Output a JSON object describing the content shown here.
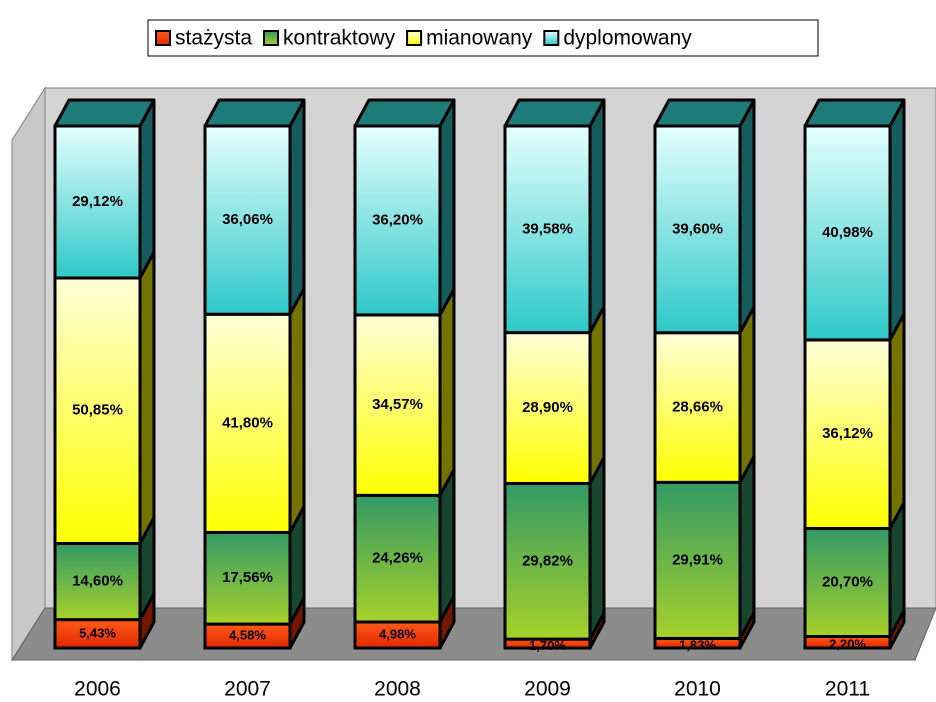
{
  "chart_data": {
    "type": "bar3d_stacked",
    "categories": [
      "2006",
      "2007",
      "2008",
      "2009",
      "2010",
      "2011"
    ],
    "ylim": [
      0,
      100
    ],
    "series": [
      {
        "name": "stażysta",
        "color": "#ff3300",
        "values": [
          5.43,
          4.58,
          4.98,
          1.7,
          1.83,
          2.2
        ],
        "value_labels": [
          "5,43%",
          "4,58%",
          "4,98%",
          "1,70%",
          "1,83%",
          "2,20%"
        ]
      },
      {
        "name": "kontraktowy",
        "color": "#339966",
        "values": [
          14.6,
          17.56,
          24.26,
          29.82,
          29.91,
          20.7
        ],
        "value_labels": [
          "14,60%",
          "17,56%",
          "24,26%",
          "29,82%",
          "29,91%",
          "20,70%"
        ]
      },
      {
        "name": "mianowany",
        "color": "#ffff00",
        "values": [
          50.85,
          41.8,
          34.57,
          28.9,
          28.66,
          36.12
        ],
        "value_labels": [
          "50,85%",
          "41,80%",
          "34,57%",
          "28,90%",
          "28,66%",
          "36,12%"
        ]
      },
      {
        "name": "dyplomowany",
        "color": "#33cccc",
        "values": [
          29.12,
          36.06,
          36.2,
          39.58,
          39.6,
          40.98
        ],
        "value_labels": [
          "29,12%",
          "36,06%",
          "36,20%",
          "39,58%",
          "39,60%",
          "40,98%"
        ]
      }
    ],
    "legend": "top"
  }
}
